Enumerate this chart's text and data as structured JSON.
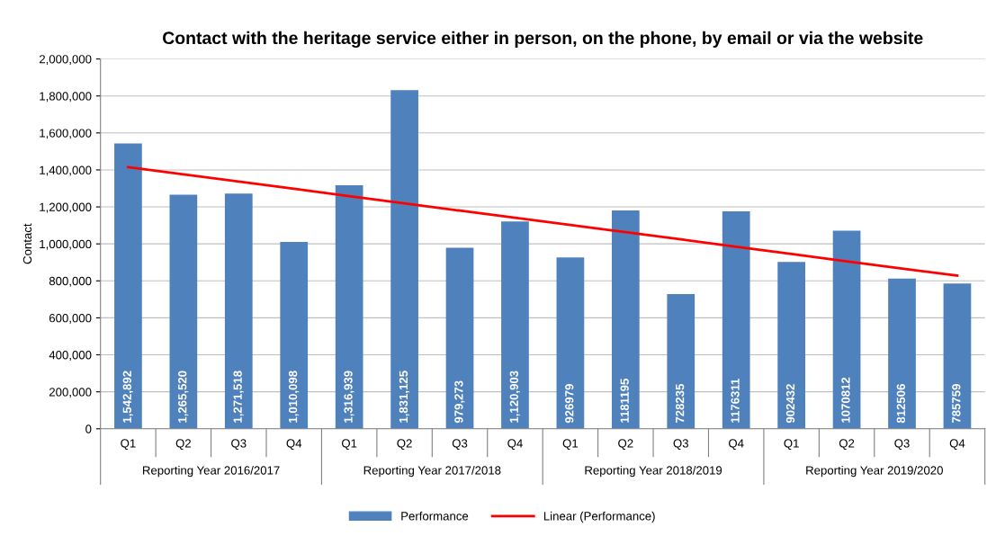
{
  "chart_data": {
    "type": "bar",
    "title": "Contact with the heritage service either in person, on the phone, by email or via the website",
    "ylabel": "Contact",
    "categories": [
      "Q1",
      "Q2",
      "Q3",
      "Q4",
      "Q1",
      "Q2",
      "Q3",
      "Q4",
      "Q1",
      "Q2",
      "Q3",
      "Q4",
      "Q1",
      "Q2",
      "Q3",
      "Q4"
    ],
    "series": [
      {
        "name": "Performance",
        "color": "#4f81bd",
        "values": [
          1542892,
          1265520,
          1271518,
          1010098,
          1316939,
          1831125,
          979273,
          1120903,
          926979,
          1181195,
          728235,
          1176311,
          902432,
          1070812,
          812506,
          785759
        ],
        "value_labels": [
          "1,542,892",
          "1,265,520",
          "1,271,518",
          "1,010,098",
          "1,316,939",
          "1,831,125",
          "979,273",
          "1,120,903",
          "926979",
          "1181195",
          "728235",
          "1176311",
          "902432",
          "1070812",
          "812506",
          "785759"
        ]
      },
      {
        "name": "Linear (Performance)",
        "type": "line",
        "color": "#ff0000",
        "values": [
          1415000,
          1376000,
          1337000,
          1298000,
          1258000,
          1219000,
          1180000,
          1141000,
          1102000,
          1063000,
          1024000,
          984000,
          945000,
          906000,
          867000,
          828000
        ]
      }
    ],
    "annotations": [
      "Reporting Year 2016/2017",
      "Reporting Year 2017/2018",
      "Reporting Year 2018/2019",
      "Reporting Year 2019/2020"
    ],
    "ylim": [
      0,
      2000000
    ],
    "yticks": [
      {
        "value": 0,
        "label": "0"
      },
      {
        "value": 200000,
        "label": "200,000"
      },
      {
        "value": 400000,
        "label": "400,000"
      },
      {
        "value": 600000,
        "label": "600,000"
      },
      {
        "value": 800000,
        "label": "800,000"
      },
      {
        "value": 1000000,
        "label": "1,000,000"
      },
      {
        "value": 1200000,
        "label": "1,200,000"
      },
      {
        "value": 1400000,
        "label": "1,400,000"
      },
      {
        "value": 1600000,
        "label": "1,600,000"
      },
      {
        "value": 1800000,
        "label": "1,800,000"
      },
      {
        "value": 2000000,
        "label": "2,000,000"
      }
    ],
    "grid": "y",
    "legend": "bottom",
    "marker": "none",
    "line_style": "solid"
  }
}
